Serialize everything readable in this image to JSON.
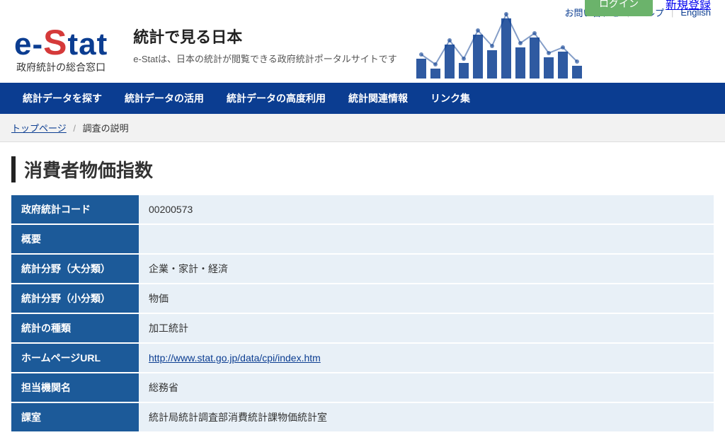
{
  "topLinks": {
    "contact": "お問い合わせ",
    "help": "ヘルプ",
    "english": "English"
  },
  "auth": {
    "login": "ログイン",
    "register": "新規登録"
  },
  "logo": {
    "subtext": "政府統計の総合窓口"
  },
  "siteTitle": "統計で見る日本",
  "siteDesc": "e-Statは、日本の統計が閲覧できる政府統計ポータルサイトです",
  "nav": [
    "統計データを探す",
    "統計データの活用",
    "統計データの高度利用",
    "統計関連情報",
    "リンク集"
  ],
  "breadcrumb": {
    "home": "トップページ",
    "current": "調査の説明"
  },
  "pageTitle": "消費者物価指数",
  "rows": [
    {
      "label": "政府統計コード",
      "value": "00200573",
      "link": false
    },
    {
      "label": "概要",
      "value": "",
      "link": false
    },
    {
      "label": "統計分野（大分類）",
      "value": "企業・家計・経済",
      "link": false
    },
    {
      "label": "統計分野（小分類）",
      "value": "物価",
      "link": false
    },
    {
      "label": "統計の種類",
      "value": "加工統計",
      "link": false
    },
    {
      "label": "ホームページURL",
      "value": "http://www.stat.go.jp/data/cpi/index.htm",
      "link": true
    },
    {
      "label": "担当機関名",
      "value": "総務省",
      "link": false
    },
    {
      "label": "課室",
      "value": "統計局統計調査部消費統計課物価統計室",
      "link": false
    }
  ],
  "chart": {
    "barColor": "#0B3D91",
    "lineColor": "#0B3D91",
    "bars": [
      28,
      14,
      48,
      22,
      62,
      40,
      85,
      44,
      58,
      30,
      38,
      18
    ]
  }
}
